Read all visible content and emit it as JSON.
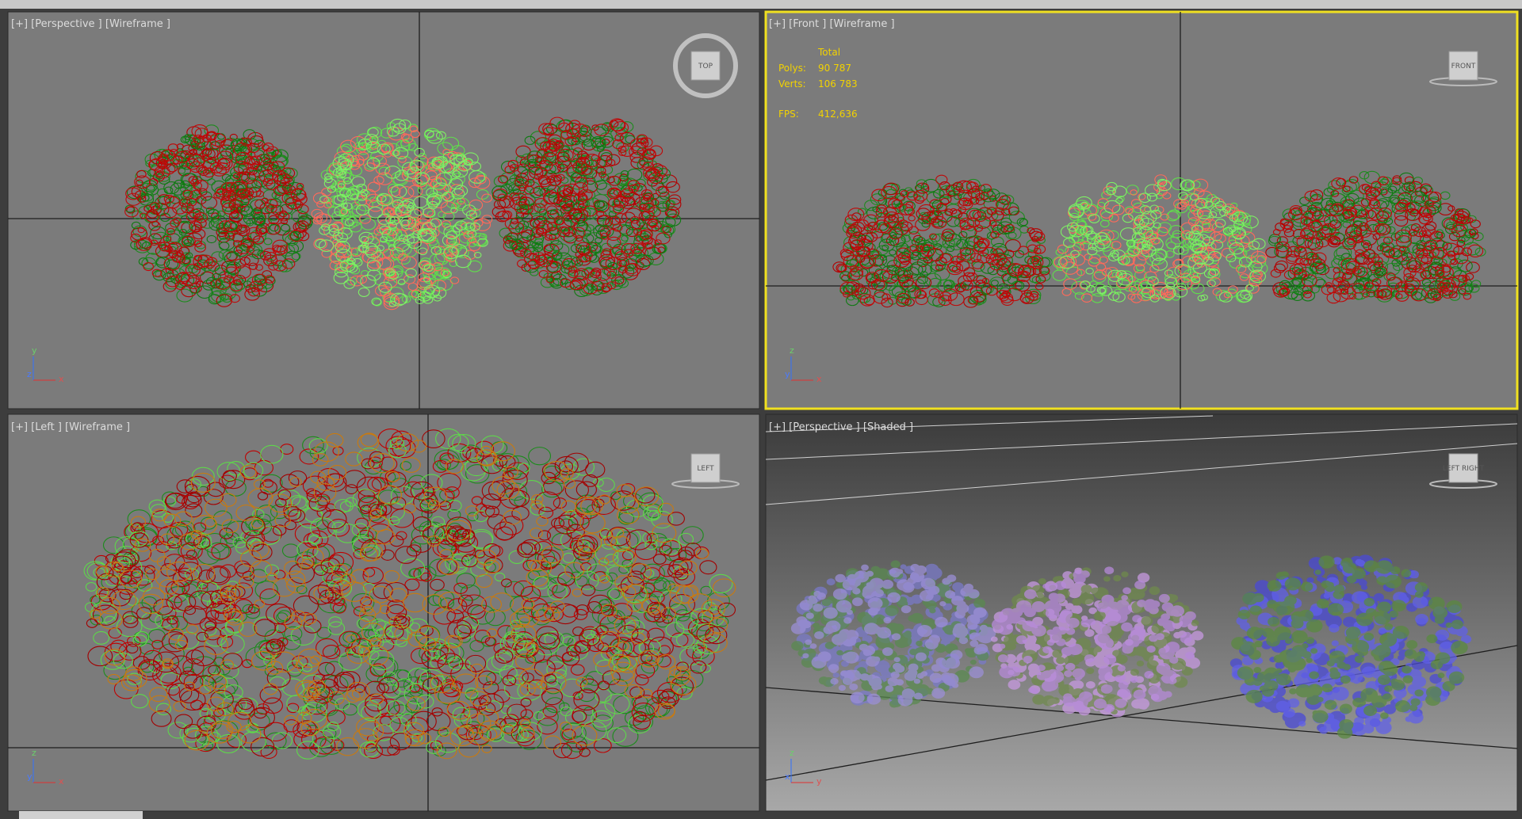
{
  "viewports": [
    {
      "label": "[+] [Perspective ] [Wireframe ]",
      "viewcube": "TOP",
      "axes": [
        "y",
        "z",
        "x"
      ]
    },
    {
      "label": "[+] [Front ] [Wireframe ]",
      "viewcube": "FRONT",
      "axes": [
        "z",
        "y",
        "x"
      ],
      "stats": {
        "header": "Total",
        "rows": [
          [
            "Polys:",
            "90 787"
          ],
          [
            "Verts:",
            "106 783"
          ],
          [
            "FPS:",
            "412,636"
          ]
        ]
      }
    },
    {
      "label": "[+] [Left ] [Wireframe ]",
      "viewcube": "LEFT",
      "axes": [
        "z",
        "y",
        "x"
      ]
    },
    {
      "label": "[+] [Perspective ] [Shaded ]",
      "viewcube": "LEFT RIGHT",
      "axes": [
        "z",
        "x",
        "y"
      ]
    }
  ]
}
